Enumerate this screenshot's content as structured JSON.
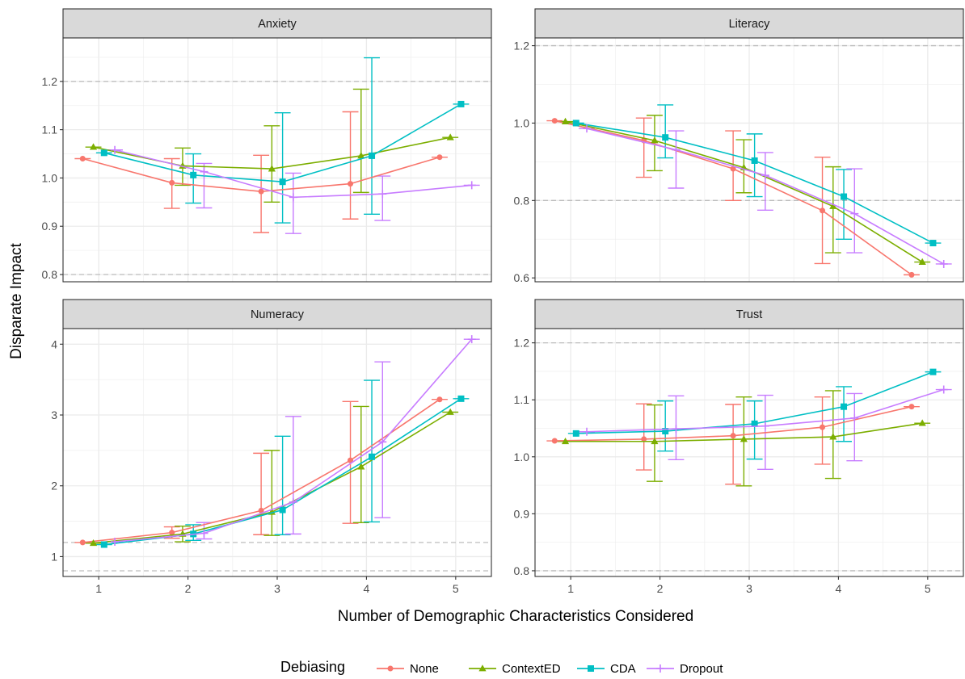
{
  "chart_data": {
    "type": "line",
    "xlabel": "Number of Demographic Characteristics Considered",
    "ylabel": "Disparate Impact",
    "x": [
      1,
      2,
      3,
      4,
      5
    ],
    "x_tick_labels": [
      "1",
      "2",
      "3",
      "4",
      "5"
    ],
    "reference_lines": [
      0.8,
      1.2
    ],
    "grid": true,
    "legend": {
      "title": "Debiasing",
      "placement": "bottom",
      "entries": [
        "None",
        "ContextED",
        "CDA",
        "Dropout"
      ]
    },
    "series_styles": [
      {
        "name": "None",
        "color": "#F8766D",
        "marker": "circle"
      },
      {
        "name": "ContextED",
        "color": "#7CAE00",
        "marker": "triangle"
      },
      {
        "name": "CDA",
        "color": "#00BFC4",
        "marker": "square"
      },
      {
        "name": "Dropout",
        "color": "#C77CFF",
        "marker": "plus"
      }
    ],
    "panels": [
      {
        "title": "Anxiety",
        "ylim": [
          0.785,
          1.29
        ],
        "y_ticks": [
          0.8,
          0.9,
          1.0,
          1.1,
          1.2
        ],
        "y_tick_labels": [
          "0.8",
          "0.9",
          "1.0",
          "1.1",
          "1.2"
        ],
        "series": [
          {
            "name": "None",
            "values": [
              1.04,
              0.99,
              0.972,
              0.988,
              1.043
            ],
            "lower": [
              1.04,
              0.937,
              0.887,
              0.915,
              1.043
            ],
            "upper": [
              1.04,
              1.04,
              1.047,
              1.137,
              1.043
            ]
          },
          {
            "name": "ContextED",
            "values": [
              1.064,
              1.025,
              1.019,
              1.046,
              1.084
            ],
            "lower": [
              1.064,
              0.985,
              0.95,
              0.97,
              1.084
            ],
            "upper": [
              1.064,
              1.062,
              1.108,
              1.184,
              1.084
            ]
          },
          {
            "name": "CDA",
            "values": [
              1.052,
              1.006,
              0.992,
              1.046,
              1.153
            ],
            "lower": [
              1.052,
              0.948,
              0.907,
              0.925,
              1.153
            ],
            "upper": [
              1.052,
              1.05,
              1.135,
              1.249,
              1.153
            ]
          },
          {
            "name": "Dropout",
            "values": [
              1.058,
              1.013,
              0.96,
              0.967,
              0.985
            ],
            "lower": [
              1.058,
              0.938,
              0.885,
              0.912,
              0.985
            ],
            "upper": [
              1.058,
              1.03,
              1.01,
              1.004,
              0.985
            ]
          }
        ]
      },
      {
        "title": "Literacy",
        "ylim": [
          0.59,
          1.22
        ],
        "y_ticks": [
          0.6,
          0.8,
          1.0,
          1.2
        ],
        "y_tick_labels": [
          "0.6",
          "0.8",
          "1.0",
          "1.2"
        ],
        "series": [
          {
            "name": "None",
            "values": [
              1.006,
              0.955,
              0.882,
              0.774,
              0.608
            ],
            "lower": [
              1.006,
              0.86,
              0.8,
              0.637,
              0.608
            ],
            "upper": [
              1.006,
              1.013,
              0.98,
              0.912,
              0.608
            ]
          },
          {
            "name": "ContextED",
            "values": [
              1.004,
              0.955,
              0.885,
              0.785,
              0.641
            ],
            "lower": [
              1.004,
              0.877,
              0.82,
              0.665,
              0.641
            ],
            "upper": [
              1.004,
              1.02,
              0.957,
              0.887,
              0.641
            ]
          },
          {
            "name": "CDA",
            "values": [
              1.0,
              0.963,
              0.903,
              0.81,
              0.69
            ],
            "lower": [
              1.0,
              0.91,
              0.81,
              0.7,
              0.69
            ],
            "upper": [
              1.0,
              1.047,
              0.972,
              0.88,
              0.69
            ]
          },
          {
            "name": "Dropout",
            "values": [
              0.986,
              0.931,
              0.865,
              0.766,
              0.636
            ],
            "lower": [
              0.986,
              0.832,
              0.775,
              0.665,
              0.636
            ],
            "upper": [
              0.986,
              0.98,
              0.924,
              0.882,
              0.636
            ]
          }
        ]
      },
      {
        "title": "Numeracy",
        "ylim": [
          0.72,
          4.22
        ],
        "y_ticks": [
          1,
          2,
          3,
          4
        ],
        "y_tick_labels": [
          "1",
          "2",
          "3",
          "4"
        ],
        "series": [
          {
            "name": "None",
            "values": [
              1.2,
              1.34,
              1.65,
              2.36,
              3.22
            ],
            "lower": [
              1.2,
              1.26,
              1.31,
              1.47,
              3.22
            ],
            "upper": [
              1.2,
              1.42,
              2.46,
              3.19,
              3.22
            ]
          },
          {
            "name": "ContextED",
            "values": [
              1.19,
              1.32,
              1.63,
              2.27,
              3.04
            ],
            "lower": [
              1.19,
              1.21,
              1.3,
              1.48,
              3.04
            ],
            "upper": [
              1.19,
              1.43,
              2.5,
              3.12,
              3.04
            ]
          },
          {
            "name": "CDA",
            "values": [
              1.17,
              1.32,
              1.66,
              2.41,
              3.23
            ],
            "lower": [
              1.17,
              1.23,
              1.31,
              1.49,
              3.23
            ],
            "upper": [
              1.17,
              1.45,
              2.7,
              3.49,
              3.23
            ]
          },
          {
            "name": "Dropout",
            "values": [
              1.21,
              1.33,
              1.77,
              2.62,
              4.07
            ],
            "lower": [
              1.21,
              1.25,
              1.32,
              1.55,
              4.07
            ],
            "upper": [
              1.21,
              1.48,
              2.98,
              3.75,
              4.07
            ]
          }
        ]
      },
      {
        "title": "Trust",
        "ylim": [
          0.79,
          1.225
        ],
        "y_ticks": [
          0.8,
          0.9,
          1.0,
          1.1,
          1.2
        ],
        "y_tick_labels": [
          "0.8",
          "0.9",
          "1.0",
          "1.1",
          "1.2"
        ],
        "series": [
          {
            "name": "None",
            "values": [
              1.028,
              1.031,
              1.037,
              1.052,
              1.088
            ],
            "lower": [
              1.028,
              0.977,
              0.952,
              0.987,
              1.088
            ],
            "upper": [
              1.028,
              1.093,
              1.092,
              1.105,
              1.088
            ]
          },
          {
            "name": "ContextED",
            "values": [
              1.027,
              1.027,
              1.031,
              1.035,
              1.059
            ],
            "lower": [
              1.027,
              0.957,
              0.949,
              0.962,
              1.059
            ],
            "upper": [
              1.027,
              1.091,
              1.105,
              1.116,
              1.059
            ]
          },
          {
            "name": "CDA",
            "values": [
              1.041,
              1.045,
              1.058,
              1.088,
              1.149
            ],
            "lower": [
              1.041,
              1.01,
              0.996,
              1.027,
              1.149
            ],
            "upper": [
              1.041,
              1.098,
              1.098,
              1.123,
              1.149
            ]
          },
          {
            "name": "Dropout",
            "values": [
              1.044,
              1.049,
              1.054,
              1.068,
              1.118
            ],
            "lower": [
              1.044,
              0.995,
              0.978,
              0.993,
              1.118
            ],
            "upper": [
              1.044,
              1.107,
              1.108,
              1.111,
              1.118
            ]
          }
        ]
      }
    ]
  }
}
